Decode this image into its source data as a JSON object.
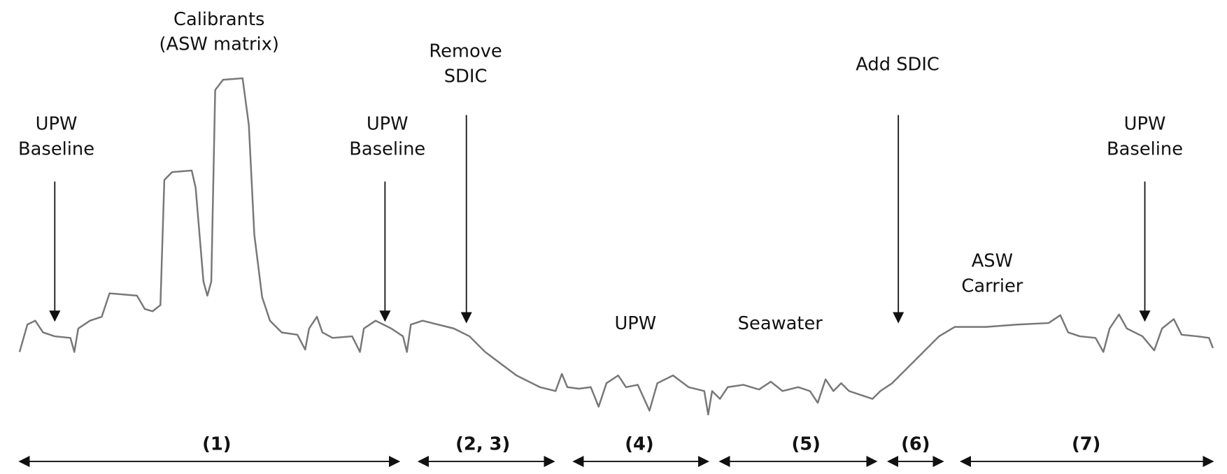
{
  "annotations": {
    "upw_baseline_left": [
      "UPW",
      "Baseline"
    ],
    "calibrants": [
      "Calibrants",
      "(ASW matrix)"
    ],
    "upw_baseline_middle": [
      "UPW",
      "Baseline"
    ],
    "remove_sdic": [
      "Remove",
      "SDIC"
    ],
    "add_sdic": [
      "Add SDIC"
    ],
    "upw_baseline_right": [
      "UPW",
      "Baseline"
    ],
    "asw_carrier": [
      "ASW",
      "Carrier"
    ],
    "upw": [
      "UPW"
    ],
    "seawater": [
      "Seawater"
    ]
  },
  "segments": [
    "(1)",
    "(2, 3)",
    "(4)",
    "(5)",
    "(6)",
    "(7)"
  ]
}
